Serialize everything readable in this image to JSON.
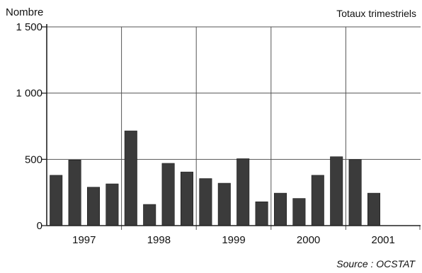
{
  "chart_data": {
    "type": "bar",
    "ylabel": "Nombre",
    "annotation_top_right": "Totaux trimestriels",
    "source": "Source : OCSTAT",
    "ylim": [
      0,
      1500
    ],
    "y_ticks": [
      {
        "value": 0,
        "label": "0"
      },
      {
        "value": 500,
        "label": "500"
      },
      {
        "value": 1000,
        "label": "1 000"
      },
      {
        "value": 1500,
        "label": "1 500"
      }
    ],
    "categories": [
      "1997",
      "1998",
      "1999",
      "2000",
      "2001"
    ],
    "quarters_per_category": 4,
    "values": [
      [
        380,
        495,
        290,
        315
      ],
      [
        715,
        160,
        470,
        405
      ],
      [
        355,
        320,
        505,
        180
      ],
      [
        245,
        205,
        380,
        520
      ],
      [
        500,
        245,
        null,
        null
      ]
    ],
    "bar_color": "#3b3b3b",
    "grid": true
  }
}
